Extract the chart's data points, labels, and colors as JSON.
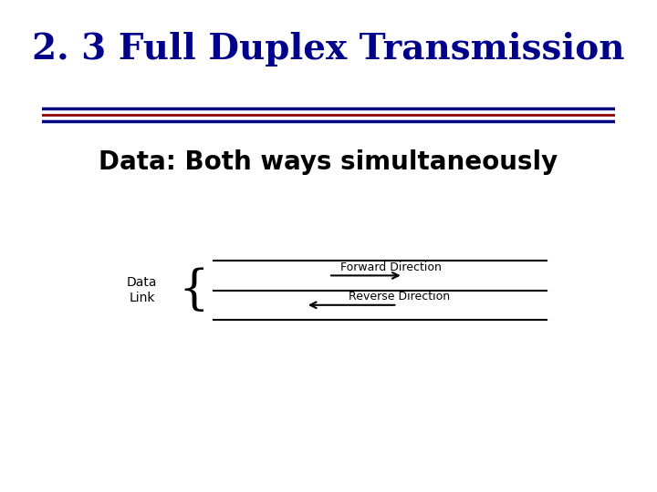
{
  "title": "2. 3 Full Duplex Transmission",
  "title_color": "#00008B",
  "title_fontsize": 28,
  "subtitle": "Data: Both ways simultaneously",
  "subtitle_fontsize": 20,
  "subtitle_color": "#000000",
  "background_color": "#FFFFFF",
  "separator_line1_color": "#000080",
  "separator_line2_color": "#8B0000",
  "separator_line3_color": "#000080",
  "label_text": "Data\nLink",
  "label_fontsize": 10,
  "forward_label": "Forward Direction",
  "reverse_label": "Reverse Direction",
  "arrow_label_fontsize": 9,
  "line_color": "#000000",
  "arrow_color": "#000000"
}
